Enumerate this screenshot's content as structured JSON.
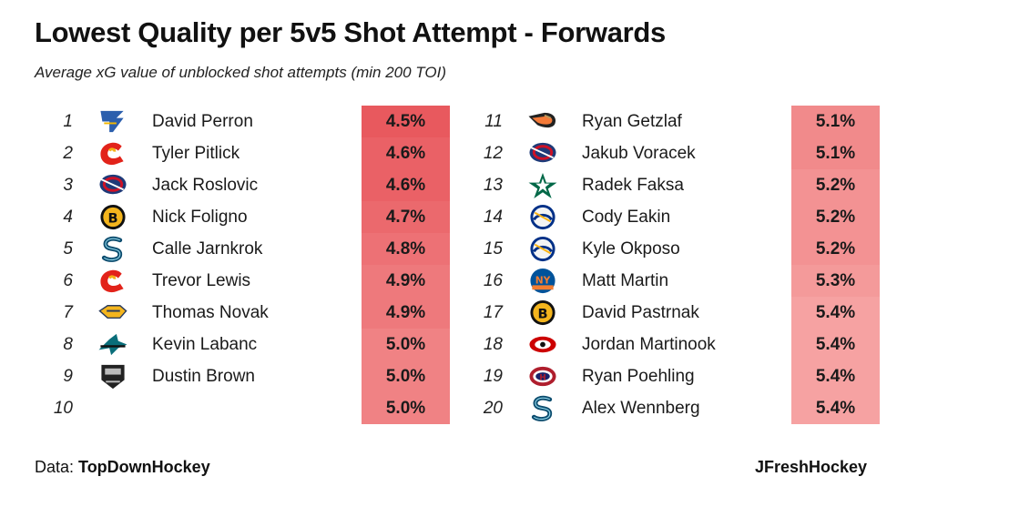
{
  "header": {
    "title": "Lowest Quality per 5v5 Shot Attempt - Forwards",
    "subtitle": "Average xG value of unblocked shot attempts (min 200 TOI)"
  },
  "footer": {
    "data_prefix": "Data: ",
    "data_source": "TopDownHockey",
    "credit": "JFreshHockey"
  },
  "chart_data": {
    "type": "table",
    "title": "Lowest Quality per 5v5 Shot Attempt - Forwards",
    "subtitle": "Average xG value of unblocked shot attempts (min 200 TOI)",
    "value_unit": "%",
    "color_scale": {
      "low": "#e8595e",
      "high": "#f6a2a2"
    },
    "rows": [
      {
        "rank": "1",
        "team_logo": "blues-note-icon",
        "player": "David Perron",
        "value": 4.5,
        "label": "4.5%"
      },
      {
        "rank": "2",
        "team_logo": "flames-c-icon",
        "player": "Tyler Pitlick",
        "value": 4.6,
        "label": "4.6%"
      },
      {
        "rank": "3",
        "team_logo": "blue-jackets-icon",
        "player": "Jack Roslovic",
        "value": 4.6,
        "label": "4.6%"
      },
      {
        "rank": "4",
        "team_logo": "bruins-b-icon",
        "player": "Nick Foligno",
        "value": 4.7,
        "label": "4.7%"
      },
      {
        "rank": "5",
        "team_logo": "kraken-s-icon",
        "player": "Calle Jarnkrok",
        "value": 4.8,
        "label": "4.8%"
      },
      {
        "rank": "6",
        "team_logo": "flames-c-icon",
        "player": "Trevor Lewis",
        "value": 4.9,
        "label": "4.9%"
      },
      {
        "rank": "7",
        "team_logo": "predators-icon",
        "player": "Thomas Novak",
        "value": 4.9,
        "label": "4.9%"
      },
      {
        "rank": "8",
        "team_logo": "sharks-icon",
        "player": "Kevin Labanc",
        "value": 5.0,
        "label": "5.0%"
      },
      {
        "rank": "9",
        "team_logo": "kings-shield-icon",
        "player": "Dustin Brown",
        "value": 5.0,
        "label": "5.0%"
      },
      {
        "rank": "10",
        "team_logo": "",
        "player": "",
        "value": 5.0,
        "label": "5.0%"
      },
      {
        "rank": "11",
        "team_logo": "ducks-icon",
        "player": "Ryan Getzlaf",
        "value": 5.1,
        "label": "5.1%"
      },
      {
        "rank": "12",
        "team_logo": "blue-jackets-icon",
        "player": "Jakub Voracek",
        "value": 5.1,
        "label": "5.1%"
      },
      {
        "rank": "13",
        "team_logo": "stars-icon",
        "player": "Radek Faksa",
        "value": 5.2,
        "label": "5.2%"
      },
      {
        "rank": "14",
        "team_logo": "sabres-icon",
        "player": "Cody Eakin",
        "value": 5.2,
        "label": "5.2%"
      },
      {
        "rank": "15",
        "team_logo": "sabres-icon",
        "player": "Kyle Okposo",
        "value": 5.2,
        "label": "5.2%"
      },
      {
        "rank": "16",
        "team_logo": "islanders-icon",
        "player": "Matt Martin",
        "value": 5.3,
        "label": "5.3%"
      },
      {
        "rank": "17",
        "team_logo": "bruins-b-icon",
        "player": "David Pastrnak",
        "value": 5.4,
        "label": "5.4%"
      },
      {
        "rank": "18",
        "team_logo": "hurricanes-icon",
        "player": "Jordan Martinook",
        "value": 5.4,
        "label": "5.4%"
      },
      {
        "rank": "19",
        "team_logo": "canadiens-icon",
        "player": "Ryan Poehling",
        "value": 5.4,
        "label": "5.4%"
      },
      {
        "rank": "20",
        "team_logo": "kraken-s-icon",
        "player": "Alex Wennberg",
        "value": 5.4,
        "label": "5.4%"
      }
    ]
  }
}
